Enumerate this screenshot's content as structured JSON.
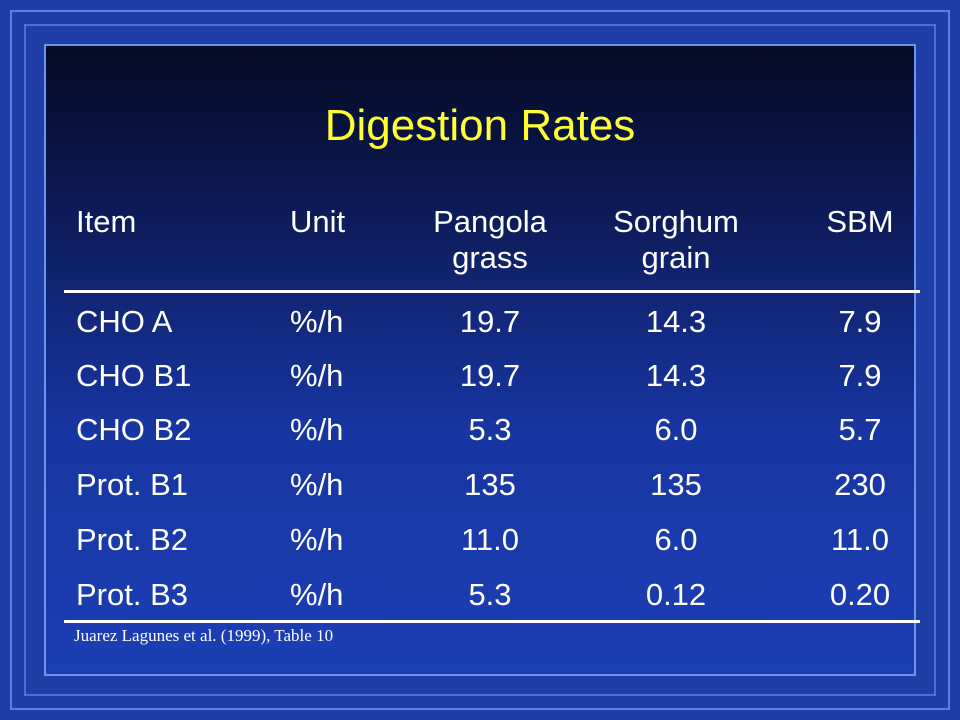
{
  "slide": {
    "title": "Digestion Rates",
    "source": "Juarez Lagunes et al. (1999), Table 10"
  },
  "table": {
    "headers": {
      "item": "Item",
      "unit": "Unit",
      "pangola": [
        "Pangola",
        "grass"
      ],
      "sorghum": [
        "Sorghum",
        "grain"
      ],
      "sbm": "SBM"
    },
    "rows": [
      {
        "item": "CHO A",
        "unit": "%/h",
        "pangola": "19.7",
        "sorghum": "14.3",
        "sbm": "7.9"
      },
      {
        "item": "CHO B1",
        "unit": "%/h",
        "pangola": "19.7",
        "sorghum": "14.3",
        "sbm": "7.9"
      },
      {
        "item": "CHO B2",
        "unit": "%/h",
        "pangola": "5.3",
        "sorghum": "6.0",
        "sbm": "5.7"
      },
      {
        "item": "Prot. B1",
        "unit": "%/h",
        "pangola": "135",
        "sorghum": "135",
        "sbm": "230"
      },
      {
        "item": "Prot. B2",
        "unit": "%/h",
        "pangola": "11.0",
        "sorghum": "6.0",
        "sbm": "11.0"
      },
      {
        "item": "Prot. B3",
        "unit": "%/h",
        "pangola": "5.3",
        "sorghum": "0.12",
        "sbm": "0.20"
      }
    ]
  },
  "colors": {
    "title": "#ffff33",
    "text": "#ffffff",
    "background": "#1f3fa6"
  }
}
